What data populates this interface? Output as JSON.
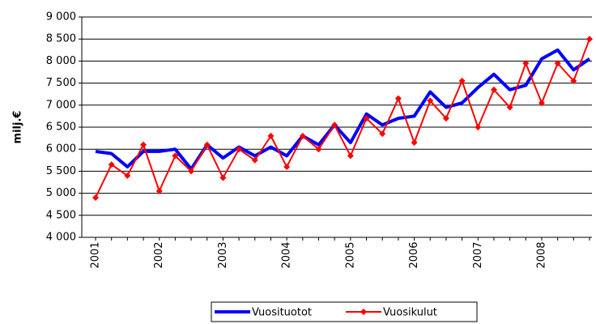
{
  "chart_data": {
    "type": "line",
    "y_label": "milj.€",
    "categories": [
      "2001",
      null,
      null,
      null,
      "2002",
      null,
      null,
      null,
      "2003",
      null,
      null,
      null,
      "2004",
      null,
      null,
      null,
      "2005",
      null,
      null,
      null,
      "2006",
      null,
      null,
      null,
      "2007",
      null,
      null,
      null,
      "2008",
      null,
      null,
      null
    ],
    "series": [
      {
        "name": "Vuosituotot",
        "color": "#0000ff",
        "values": [
          5950,
          5900,
          5600,
          5950,
          5950,
          6000,
          5550,
          6100,
          5800,
          6050,
          5850,
          6050,
          5850,
          6300,
          6100,
          6550,
          6150,
          6800,
          6550,
          6700,
          6750,
          7300,
          6950,
          7050,
          7400,
          7700,
          7350,
          7450,
          8050,
          8250,
          7800,
          8050
        ]
      },
      {
        "name": "Vuosikulut",
        "color": "#ff0000",
        "values": [
          4900,
          5650,
          5400,
          6100,
          5050,
          5850,
          5500,
          6100,
          5350,
          6000,
          5750,
          6300,
          5600,
          6300,
          6000,
          6550,
          5850,
          6700,
          6350,
          7150,
          6150,
          7100,
          6700,
          7550,
          6500,
          7350,
          6950,
          7950,
          7050,
          7950,
          7550,
          8500
        ]
      }
    ],
    "ylim": [
      4000,
      9000
    ],
    "yticks": [
      {
        "value": 4000,
        "label": "4 000"
      },
      {
        "value": 4500,
        "label": "4 500"
      },
      {
        "value": 5000,
        "label": "5 000"
      },
      {
        "value": 5500,
        "label": "5 500"
      },
      {
        "value": 6000,
        "label": "6 000"
      },
      {
        "value": 6500,
        "label": "6 500"
      },
      {
        "value": 7000,
        "label": "7 000"
      },
      {
        "value": 7500,
        "label": "7 500"
      },
      {
        "value": 8000,
        "label": "8 000"
      },
      {
        "value": 8500,
        "label": "8 500"
      },
      {
        "value": 9000,
        "label": "9 000"
      }
    ],
    "grid": true,
    "legend": "bottom"
  }
}
